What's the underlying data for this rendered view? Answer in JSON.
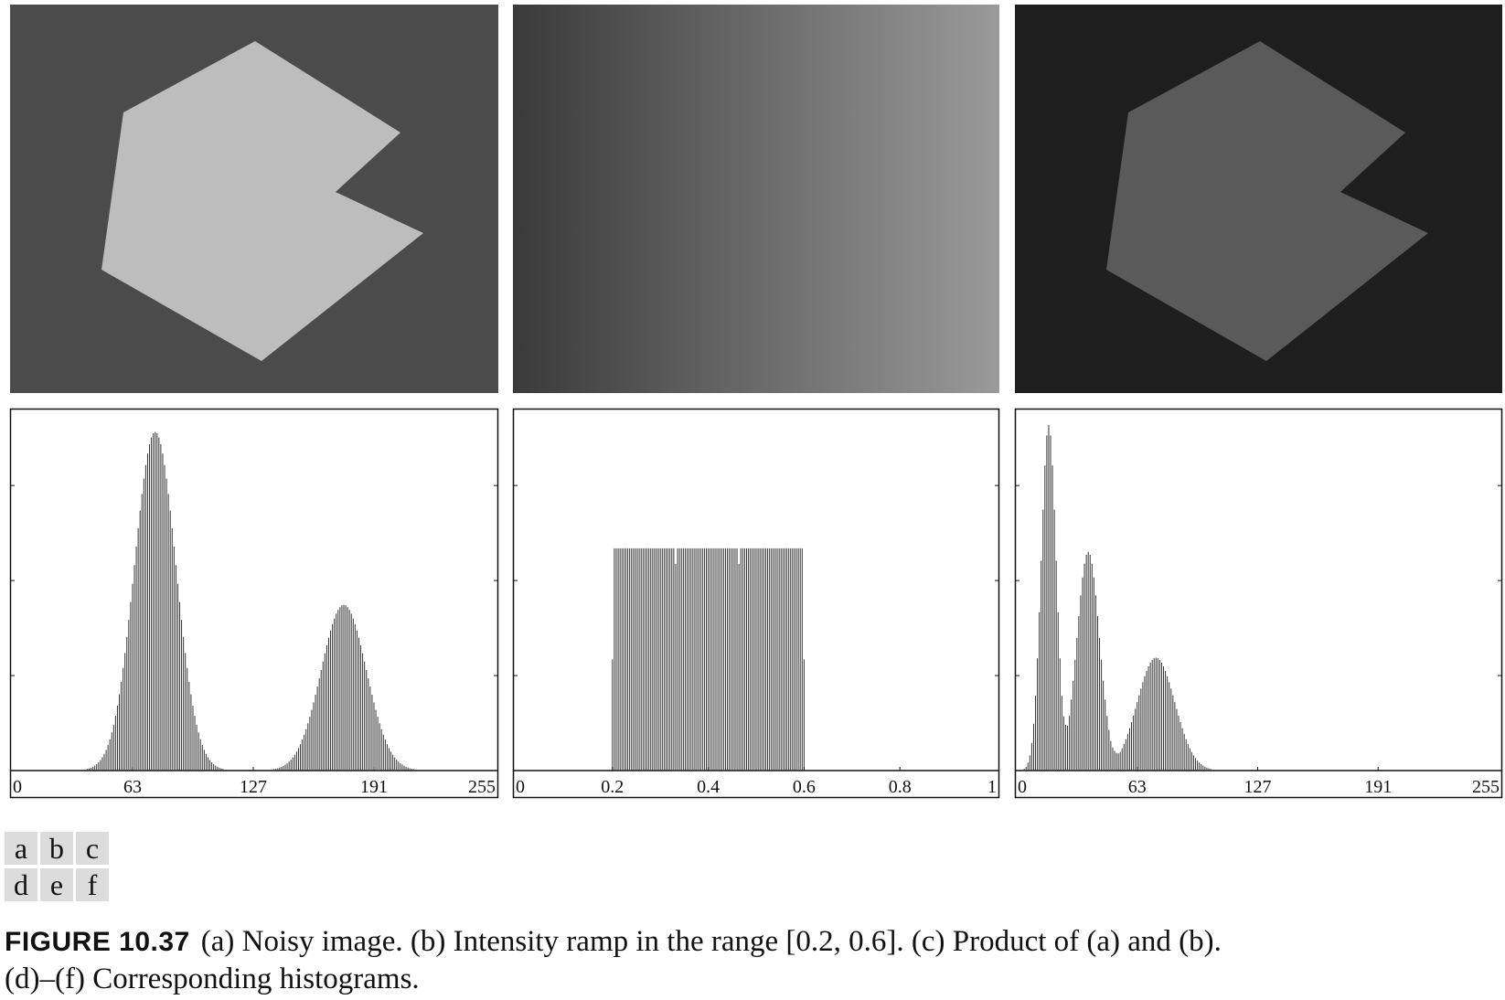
{
  "figure": {
    "label": "FIGURE 10.37",
    "caption_line1": "(a) Noisy image. (b) Intensity ramp in the range [0.2, 0.6]. (c) Product of (a) and (b).",
    "caption_line2": "(d)–(f) Corresponding histograms.",
    "panel_letters": [
      "a",
      "b",
      "c",
      "d",
      "e",
      "f"
    ]
  },
  "colors": {
    "background_a": "#4b4b4b",
    "object_a": "#bdbdbd",
    "ramp_start": "#3a3a3a",
    "ramp_end": "#9a9a9a",
    "background_c": "#1e1e1e",
    "object_c": "#5a5a5a",
    "bar_color": "#333333"
  },
  "chart_data": [
    {
      "type": "bar",
      "panel": "d",
      "x_ticks": [
        "0",
        "63",
        "127",
        "191",
        "255"
      ],
      "xlim": [
        0,
        255
      ],
      "ylim": [
        0,
        1
      ],
      "grid": false,
      "peaks": [
        {
          "center": 75,
          "height": 0.96,
          "sigma": 11
        },
        {
          "center": 175,
          "height": 0.47,
          "sigma": 12
        }
      ]
    },
    {
      "type": "bar",
      "panel": "e",
      "x_ticks": [
        "0",
        "0.2",
        "0.4",
        "0.6",
        "0.8",
        "1"
      ],
      "xlim": [
        0,
        1
      ],
      "ylim": [
        0,
        1
      ],
      "grid": false,
      "uniform_range": [
        0.2,
        0.6
      ],
      "uniform_height": 0.63
    },
    {
      "type": "bar",
      "panel": "f",
      "x_ticks": [
        "0",
        "63",
        "127",
        "191",
        "255"
      ],
      "xlim": [
        0,
        255
      ],
      "ylim": [
        0,
        1
      ],
      "grid": false,
      "peaks": [
        {
          "center": 16,
          "height": 0.98,
          "sigma": 4
        },
        {
          "center": 37,
          "height": 0.62,
          "sigma": 6
        },
        {
          "center": 73,
          "height": 0.32,
          "sigma": 10
        }
      ]
    }
  ]
}
